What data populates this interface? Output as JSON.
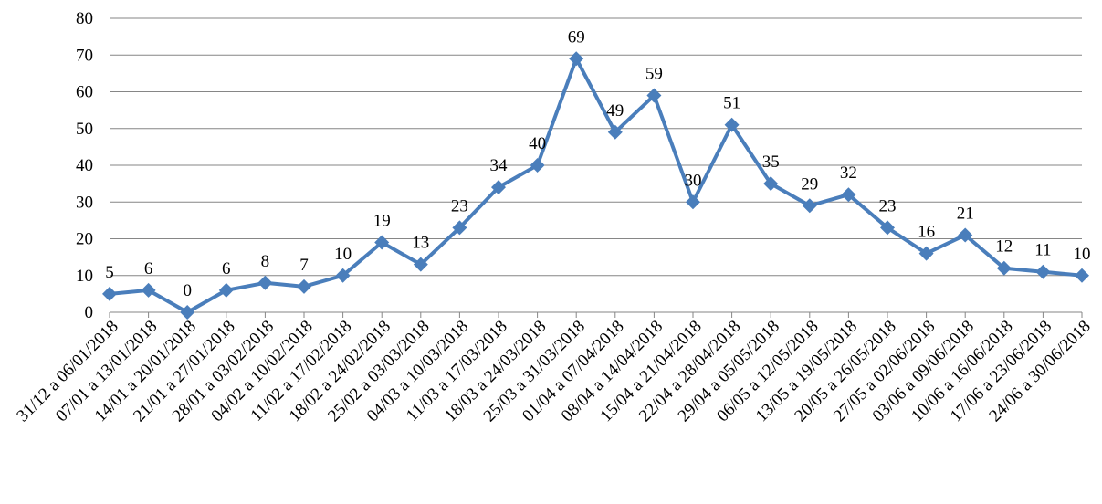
{
  "chart_data": {
    "type": "line",
    "categories": [
      "31/12 a 06/01/2018",
      "07/01 a 13/01/2018",
      "14/01 a 20/01/2018",
      "21/01 a 27/01/2018",
      "28/01 a 03/02/2018",
      "04/02 a 10/02/2018",
      "11/02 a 17/02/2018",
      "18/02 a 24/02/2018",
      "25/02 a 03/03/2018",
      "04/03 a 10/03/2018",
      "11/03 a 17/03/2018",
      "18/03 a 24/03/2018",
      "25/03 a 31/03/2018",
      "01/04 a 07/04/2018",
      "08/04 a 14/04/2018",
      "15/04 a 21/04/2018",
      "22/04 a 28/04/2018",
      "29/04 a 05/05/2018",
      "06/05 a 12/05/2018",
      "13/05 a 19/05/2018",
      "20/05 a 26/05/2018",
      "27/05 a 02/06/2018",
      "03/06 a 09/06/2018",
      "10/06 a 16/06/2018",
      "17/06 a 23/06/2018",
      "24/06 a 30/06/2018"
    ],
    "values": [
      5,
      6,
      0,
      6,
      8,
      7,
      10,
      19,
      13,
      23,
      34,
      40,
      69,
      49,
      59,
      30,
      51,
      35,
      29,
      32,
      23,
      16,
      21,
      12,
      11,
      10
    ],
    "color": "#4a7ebb",
    "ylim": [
      0,
      80
    ],
    "yticks": [
      0,
      10,
      20,
      30,
      40,
      50,
      60,
      70,
      80
    ],
    "grid": true
  }
}
